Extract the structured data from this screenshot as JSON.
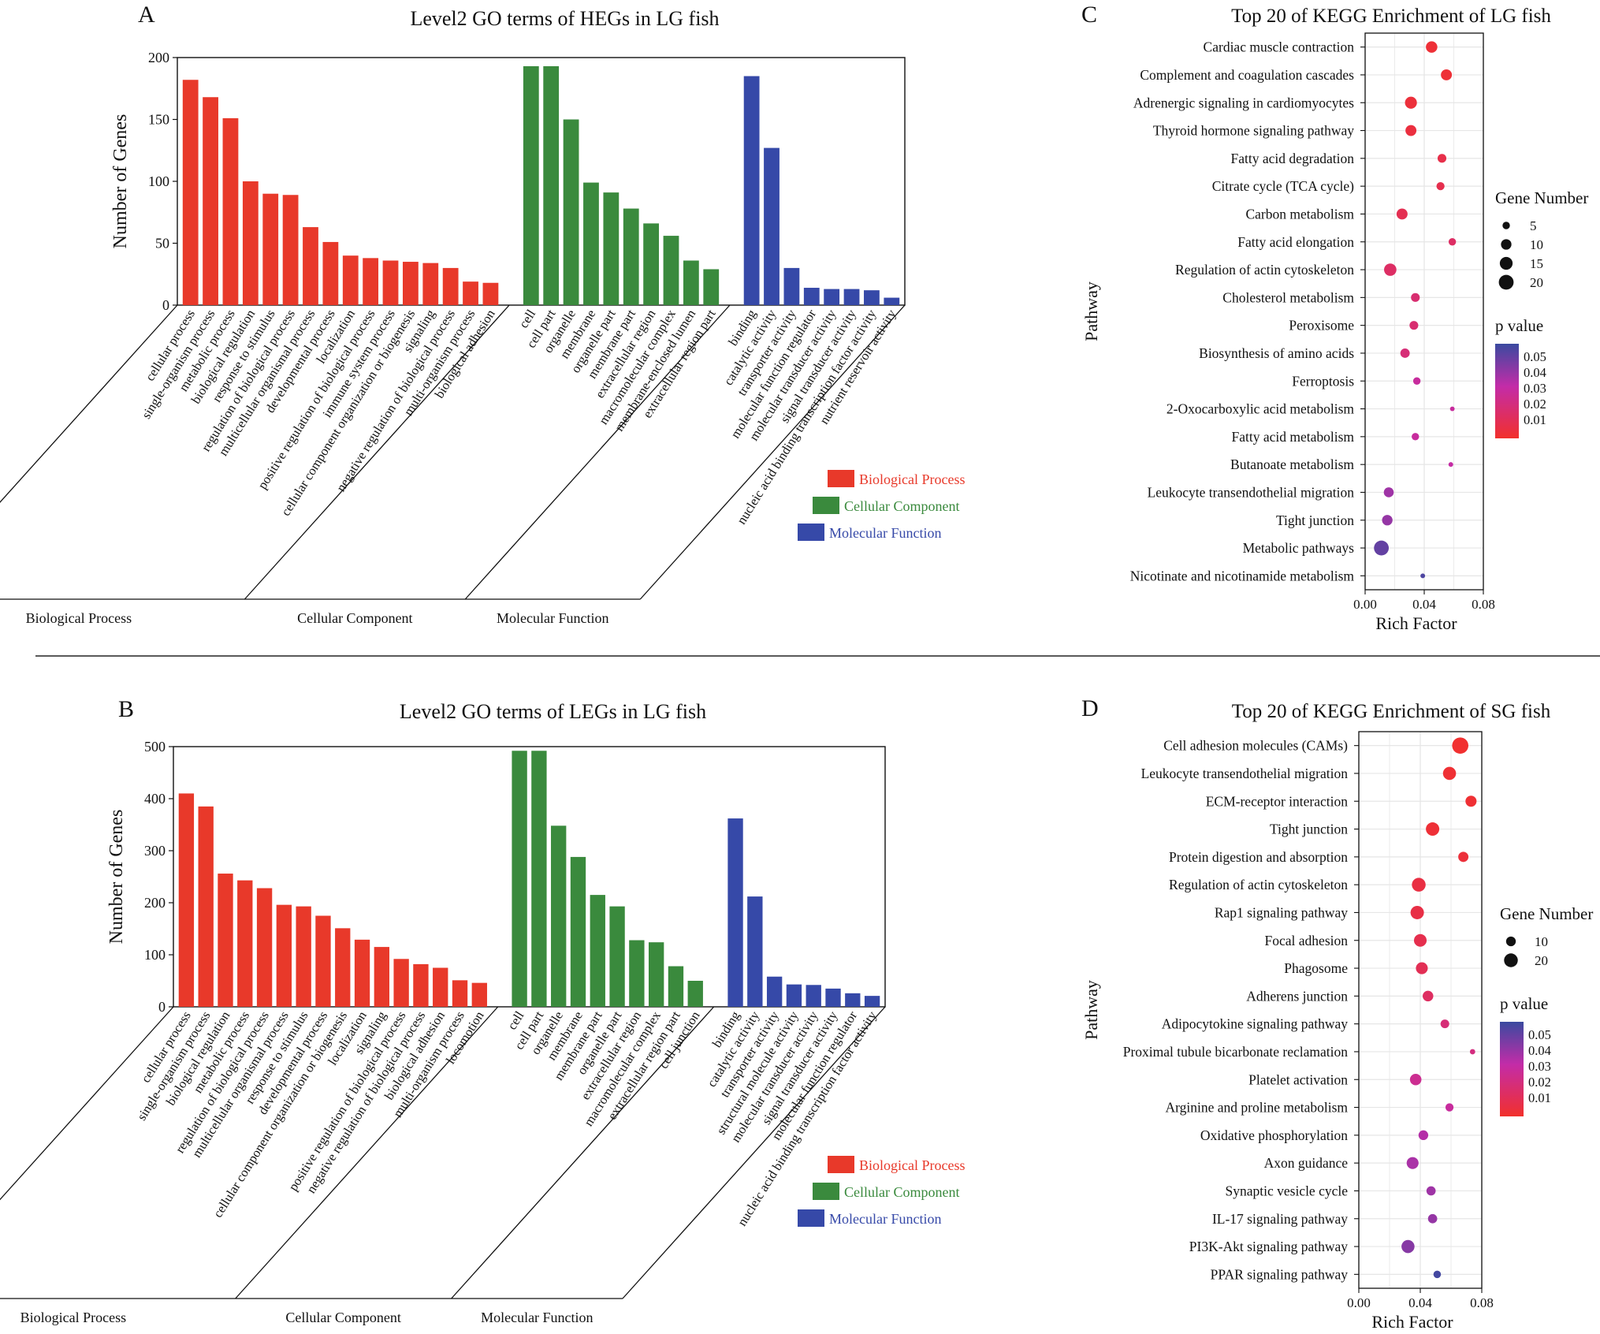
{
  "figure": {
    "colors": {
      "biological_process": "#e8392a",
      "cellular_component": "#3a8a3d",
      "molecular_function": "#3649a8",
      "pvalue_low": "#f2302c",
      "pvalue_mid": "#c32ca8",
      "pvalue_high": "#3a4aa0",
      "grid": "#e6e6e6"
    }
  },
  "chart_data": [
    {
      "id": "A",
      "panel_label": "A",
      "type": "bar",
      "title": "Level2 GO terms of HEGs in LG fish",
      "ylabel": "Number of Genes",
      "ylim": [
        0,
        200
      ],
      "yticks": [
        0,
        50,
        100,
        150,
        200
      ],
      "groups": [
        {
          "name": "Biological Process",
          "key": "biological_process",
          "categories": [
            "cellular process",
            "single-organism process",
            "metabolic process",
            "biological regulation",
            "response to stimulus",
            "regulation of biological process",
            "multicellular organismal process",
            "developmental process",
            "localization",
            "positive regulation of biological process",
            "immune system process",
            "cellular component organization or biogenesis",
            "signaling",
            "negative regulation of biological process",
            "multi-organism process",
            "biological adhesion"
          ],
          "values": [
            182,
            168,
            151,
            100,
            90,
            89,
            63,
            51,
            40,
            38,
            36,
            35,
            34,
            30,
            19,
            18
          ]
        },
        {
          "name": "Cellular Component",
          "key": "cellular_component",
          "categories": [
            "cell",
            "cell part",
            "organelle",
            "membrane",
            "organelle part",
            "membrane part",
            "extracellular region",
            "macromolecular complex",
            "membrane-enclosed lumen",
            "extracellular region part"
          ],
          "values": [
            193,
            193,
            150,
            99,
            91,
            78,
            66,
            56,
            36,
            29
          ]
        },
        {
          "name": "Molecular Function",
          "key": "molecular_function",
          "categories": [
            "binding",
            "catalytic activity",
            "transporter activity",
            "molecular function regulator",
            "molecular transducer activity",
            "signal transducer activity",
            "nucleic acid binding transcription factor activity",
            "nutrient reservoir activity"
          ],
          "values": [
            185,
            127,
            30,
            14,
            13,
            13,
            12,
            6
          ]
        }
      ],
      "legend": [
        "Biological Process",
        "Cellular Component",
        "Molecular Function"
      ]
    },
    {
      "id": "B",
      "panel_label": "B",
      "type": "bar",
      "title": "Level2 GO terms of LEGs in LG fish",
      "ylabel": "Number of Genes",
      "ylim": [
        0,
        500
      ],
      "yticks": [
        0,
        100,
        200,
        300,
        400,
        500
      ],
      "groups": [
        {
          "name": "Biological Process",
          "key": "biological_process",
          "categories": [
            "cellular process",
            "single-organism process",
            "biological regulation",
            "metabolic process",
            "regulation of biological process",
            "multicellular organismal process",
            "response to stimulus",
            "developmental process",
            "cellular component organization or biogenesis",
            "localization",
            "signaling",
            "positive regulation of biological process",
            "negative regulation of biological process",
            "biological adhesion",
            "multi-organism process",
            "locomotion"
          ],
          "values": [
            410,
            385,
            256,
            243,
            228,
            196,
            193,
            175,
            151,
            129,
            115,
            92,
            82,
            75,
            51,
            46
          ]
        },
        {
          "name": "Cellular Component",
          "key": "cellular_component",
          "categories": [
            "cell",
            "cell part",
            "organelle",
            "membrane",
            "membrane part",
            "organelle part",
            "extracellular region",
            "macromolecular complex",
            "extracellular region part",
            "cell junction"
          ],
          "values": [
            492,
            492,
            348,
            288,
            215,
            193,
            128,
            124,
            78,
            50
          ]
        },
        {
          "name": "Molecular Function",
          "key": "molecular_function",
          "categories": [
            "binding",
            "catalytic activity",
            "transporter activity",
            "structural molecule activity",
            "molecular transducer activity",
            "signal transducer activity",
            "molecular function regulator",
            "nucleic acid binding transcription factor activity"
          ],
          "values": [
            362,
            212,
            58,
            43,
            42,
            35,
            26,
            21
          ]
        }
      ],
      "legend": [
        "Biological Process",
        "Cellular Component",
        "Molecular Function"
      ]
    },
    {
      "id": "C",
      "panel_label": "C",
      "type": "scatter",
      "title": "Top 20 of KEGG Enrichment of LG fish",
      "xlabel": "Rich Factor",
      "ylabel": "Pathway",
      "xlim": [
        0.0,
        0.08
      ],
      "xticks": [
        "0.00",
        "0.04",
        "0.08"
      ],
      "size_legend_title": "Gene Number",
      "size_legend": [
        5,
        10,
        15,
        20
      ],
      "color_legend_title": "p value",
      "color_legend": [
        "0.05",
        "0.04",
        "0.03",
        "0.02",
        "0.01"
      ],
      "points": [
        {
          "pathway": "Cardiac muscle contraction",
          "rich": 0.045,
          "genes": 12,
          "p": 0.003
        },
        {
          "pathway": "Complement and coagulation cascades",
          "rich": 0.055,
          "genes": 11,
          "p": 0.003
        },
        {
          "pathway": "Adrenergic signaling in cardiomyocytes",
          "rich": 0.031,
          "genes": 13,
          "p": 0.004
        },
        {
          "pathway": "Thyroid hormone signaling pathway",
          "rich": 0.031,
          "genes": 11,
          "p": 0.005
        },
        {
          "pathway": "Fatty acid degradation",
          "rich": 0.052,
          "genes": 7,
          "p": 0.008
        },
        {
          "pathway": "Citrate cycle (TCA cycle)",
          "rich": 0.051,
          "genes": 6,
          "p": 0.009
        },
        {
          "pathway": "Carbon metabolism",
          "rich": 0.025,
          "genes": 11,
          "p": 0.01
        },
        {
          "pathway": "Fatty acid elongation",
          "rich": 0.059,
          "genes": 5,
          "p": 0.015
        },
        {
          "pathway": "Regulation of actin cytoskeleton",
          "rich": 0.017,
          "genes": 14,
          "p": 0.015
        },
        {
          "pathway": "Cholesterol metabolism",
          "rich": 0.034,
          "genes": 7,
          "p": 0.018
        },
        {
          "pathway": "Peroxisome",
          "rich": 0.033,
          "genes": 7,
          "p": 0.018
        },
        {
          "pathway": "Biosynthesis of amino acids",
          "rich": 0.027,
          "genes": 8,
          "p": 0.02
        },
        {
          "pathway": "Ferroptosis",
          "rich": 0.035,
          "genes": 5,
          "p": 0.03
        },
        {
          "pathway": "2-Oxocarboxylic acid metabolism",
          "rich": 0.059,
          "genes": 2,
          "p": 0.03
        },
        {
          "pathway": "Fatty acid metabolism",
          "rich": 0.034,
          "genes": 5,
          "p": 0.03
        },
        {
          "pathway": "Butanoate metabolism",
          "rich": 0.058,
          "genes": 2,
          "p": 0.032
        },
        {
          "pathway": "Leukocyte transendothelial migration",
          "rich": 0.016,
          "genes": 9,
          "p": 0.04
        },
        {
          "pathway": "Tight junction",
          "rich": 0.015,
          "genes": 10,
          "p": 0.042
        },
        {
          "pathway": "Metabolic pathways",
          "rich": 0.011,
          "genes": 20,
          "p": 0.052
        },
        {
          "pathway": "Nicotinate and nicotinamide metabolism",
          "rich": 0.039,
          "genes": 2,
          "p": 0.056
        }
      ]
    },
    {
      "id": "D",
      "panel_label": "D",
      "type": "scatter",
      "title": "Top 20 of KEGG Enrichment of SG fish",
      "xlabel": "Rich Factor",
      "ylabel": "Pathway",
      "xlim": [
        0.0,
        0.08
      ],
      "xticks": [
        "0.00",
        "0.04",
        "0.08"
      ],
      "size_legend_title": "Gene Number",
      "size_legend": [
        10,
        20
      ],
      "color_legend_title": "p value",
      "color_legend": [
        "0.05",
        "0.04",
        "0.03",
        "0.02",
        "0.01"
      ],
      "points": [
        {
          "pathway": "Cell adhesion molecules (CAMs)",
          "rich": 0.066,
          "genes": 28,
          "p": 0.001
        },
        {
          "pathway": "Leukocyte transendothelial migration",
          "rich": 0.059,
          "genes": 18,
          "p": 0.002
        },
        {
          "pathway": "ECM-receptor interaction",
          "rich": 0.073,
          "genes": 13,
          "p": 0.002
        },
        {
          "pathway": "Tight junction",
          "rich": 0.048,
          "genes": 19,
          "p": 0.003
        },
        {
          "pathway": "Protein digestion and absorption",
          "rich": 0.068,
          "genes": 11,
          "p": 0.004
        },
        {
          "pathway": "Regulation of actin cytoskeleton",
          "rich": 0.039,
          "genes": 20,
          "p": 0.006
        },
        {
          "pathway": "Rap1 signaling pathway",
          "rich": 0.038,
          "genes": 19,
          "p": 0.007
        },
        {
          "pathway": "Focal adhesion",
          "rich": 0.04,
          "genes": 17,
          "p": 0.009
        },
        {
          "pathway": "Phagosome",
          "rich": 0.041,
          "genes": 15,
          "p": 0.011
        },
        {
          "pathway": "Adherens junction",
          "rich": 0.045,
          "genes": 12,
          "p": 0.014
        },
        {
          "pathway": "Adipocytokine signaling pathway",
          "rich": 0.056,
          "genes": 8,
          "p": 0.02
        },
        {
          "pathway": "Proximal tubule bicarbonate reclamation",
          "rich": 0.074,
          "genes": 3,
          "p": 0.022
        },
        {
          "pathway": "Platelet activation",
          "rich": 0.037,
          "genes": 14,
          "p": 0.027
        },
        {
          "pathway": "Arginine and proline metabolism",
          "rich": 0.059,
          "genes": 7,
          "p": 0.03
        },
        {
          "pathway": "Oxidative phosphorylation",
          "rich": 0.042,
          "genes": 10,
          "p": 0.036
        },
        {
          "pathway": "Axon guidance",
          "rich": 0.035,
          "genes": 15,
          "p": 0.038
        },
        {
          "pathway": "Synaptic vesicle cycle",
          "rich": 0.047,
          "genes": 9,
          "p": 0.04
        },
        {
          "pathway": "IL-17 signaling pathway",
          "rich": 0.048,
          "genes": 9,
          "p": 0.042
        },
        {
          "pathway": "PI3K-Akt signaling pathway",
          "rich": 0.032,
          "genes": 18,
          "p": 0.045
        },
        {
          "pathway": "PPAR signaling pathway",
          "rich": 0.051,
          "genes": 6,
          "p": 0.058
        }
      ]
    }
  ]
}
